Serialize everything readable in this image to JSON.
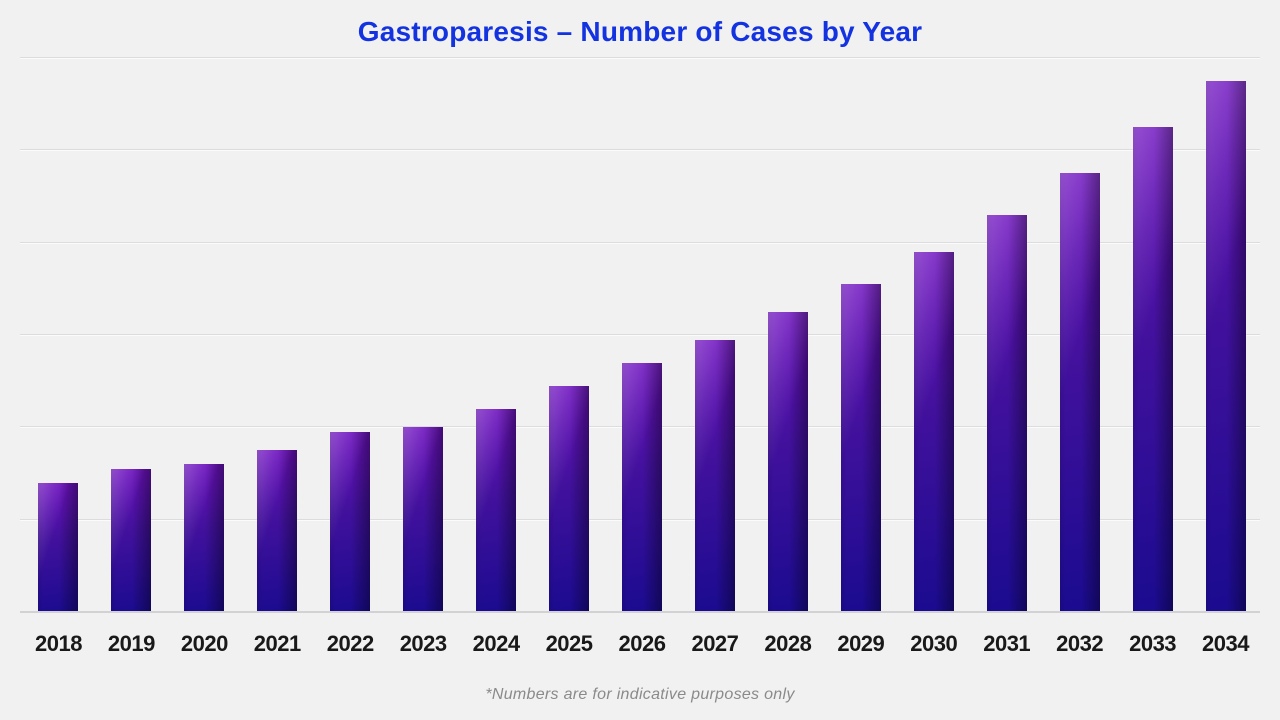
{
  "canvas": {
    "background_color": "#f1f1f2"
  },
  "chart_data": {
    "type": "bar",
    "title": "Gastroparesis – Number of Cases by Year",
    "footnote": "*Numbers are for indicative purposes only",
    "categories": [
      "2018",
      "2019",
      "2020",
      "2021",
      "2022",
      "2023",
      "2024",
      "2025",
      "2026",
      "2027",
      "2028",
      "2029",
      "2030",
      "2031",
      "2032",
      "2033",
      "2034"
    ],
    "values": [
      1400,
      1550,
      1600,
      1750,
      1950,
      2000,
      2200,
      2450,
      2700,
      2950,
      3250,
      3550,
      3900,
      4300,
      4750,
      5250,
      5750
    ],
    "xlabel": "",
    "ylabel": "",
    "ylim": [
      0,
      6000
    ],
    "gridline_step": 1000,
    "y_tick_labels_visible": false,
    "grid": "horizontal",
    "legend_position": "none",
    "colors": {
      "title": "#1433e0",
      "bar_gradient_top": "#6f12c0",
      "bar_gradient_middle": "#43119d",
      "bar_gradient_bottom": "#1a0b8f",
      "gridline": "#dcdcde",
      "axis_line": "#d2d2d5",
      "x_labels": "#191919",
      "footnote": "#8a8a8a"
    }
  }
}
